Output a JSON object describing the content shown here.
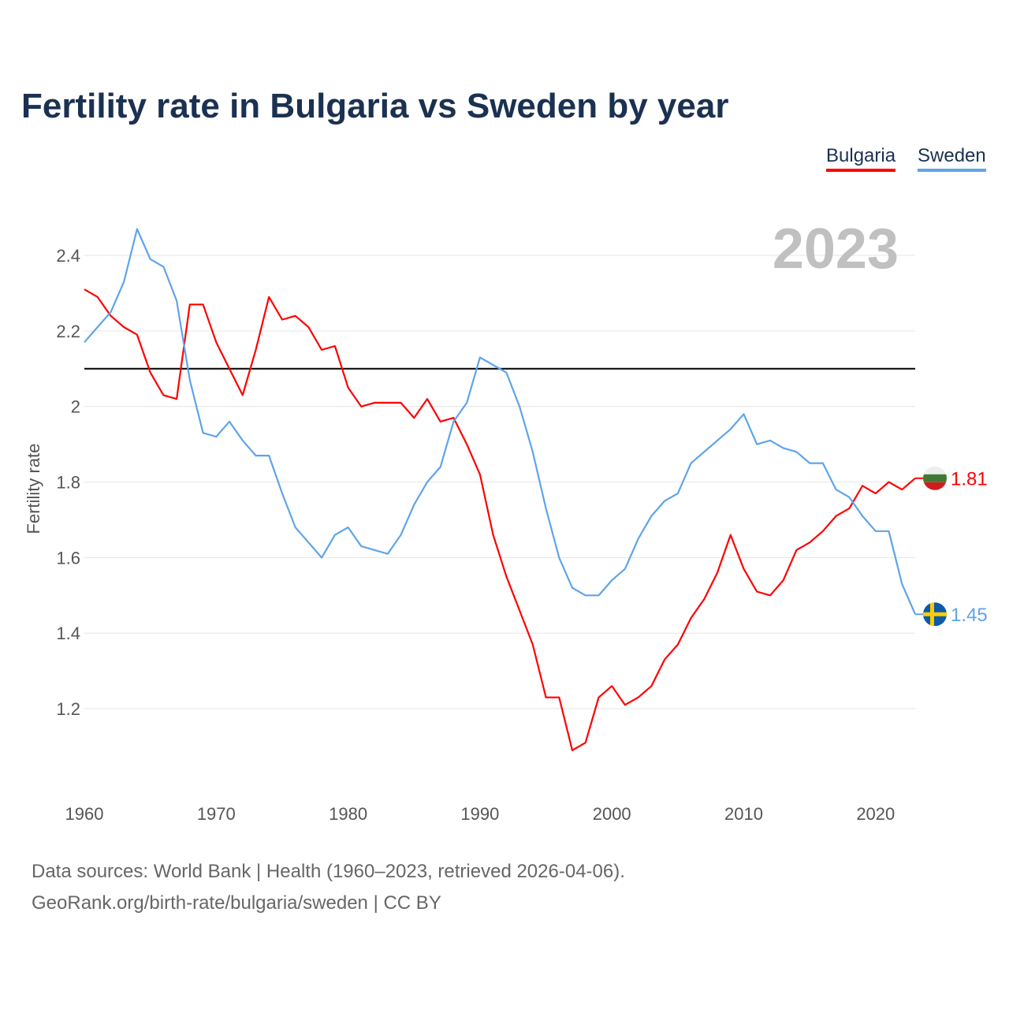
{
  "chart_data": {
    "type": "line",
    "title": "Fertility rate in Bulgaria vs Sweden by year",
    "xlabel": "",
    "ylabel": "Fertility rate",
    "xlim": [
      1960,
      2023
    ],
    "ylim": [
      1.0,
      2.55
    ],
    "xticks": [
      1960,
      1970,
      1980,
      1990,
      2000,
      2010,
      2020
    ],
    "yticks": [
      1.2,
      1.4,
      1.6,
      1.8,
      2.0,
      2.2,
      2.4
    ],
    "ytick_labels": [
      "1.2",
      "1.4",
      "1.6",
      "1.8",
      "2",
      "2.2",
      "2.4"
    ],
    "reference_line": 2.1,
    "year_label": "2023",
    "grid": true,
    "legend_position": "top-right",
    "x": [
      1960,
      1961,
      1962,
      1963,
      1964,
      1965,
      1966,
      1967,
      1968,
      1969,
      1970,
      1971,
      1972,
      1973,
      1974,
      1975,
      1976,
      1977,
      1978,
      1979,
      1980,
      1981,
      1982,
      1983,
      1984,
      1985,
      1986,
      1987,
      1988,
      1989,
      1990,
      1991,
      1992,
      1993,
      1994,
      1995,
      1996,
      1997,
      1998,
      1999,
      2000,
      2001,
      2002,
      2003,
      2004,
      2005,
      2006,
      2007,
      2008,
      2009,
      2010,
      2011,
      2012,
      2013,
      2014,
      2015,
      2016,
      2017,
      2018,
      2019,
      2020,
      2021,
      2022,
      2023
    ],
    "series": [
      {
        "name": "Bulgaria",
        "color": "#ff0000",
        "end_label": "1.81",
        "values": [
          2.31,
          2.29,
          2.24,
          2.21,
          2.19,
          2.09,
          2.03,
          2.02,
          2.27,
          2.27,
          2.17,
          2.1,
          2.03,
          2.15,
          2.29,
          2.23,
          2.24,
          2.21,
          2.15,
          2.16,
          2.05,
          2.0,
          2.01,
          2.01,
          2.01,
          1.97,
          2.02,
          1.96,
          1.97,
          1.9,
          1.82,
          1.66,
          1.55,
          1.46,
          1.37,
          1.23,
          1.23,
          1.09,
          1.11,
          1.23,
          1.26,
          1.21,
          1.23,
          1.26,
          1.33,
          1.37,
          1.44,
          1.49,
          1.56,
          1.66,
          1.57,
          1.51,
          1.5,
          1.54,
          1.62,
          1.64,
          1.67,
          1.71,
          1.73,
          1.79,
          1.77,
          1.8,
          1.78,
          1.81
        ]
      },
      {
        "name": "Sweden",
        "color": "#5ea4ea",
        "end_label": "1.45",
        "values": [
          2.17,
          2.21,
          2.25,
          2.33,
          2.47,
          2.39,
          2.37,
          2.28,
          2.07,
          1.93,
          1.92,
          1.96,
          1.91,
          1.87,
          1.87,
          1.77,
          1.68,
          1.64,
          1.6,
          1.66,
          1.68,
          1.63,
          1.62,
          1.61,
          1.66,
          1.74,
          1.8,
          1.84,
          1.96,
          2.01,
          2.13,
          2.11,
          2.09,
          2.0,
          1.88,
          1.73,
          1.6,
          1.52,
          1.5,
          1.5,
          1.54,
          1.57,
          1.65,
          1.71,
          1.75,
          1.77,
          1.85,
          1.88,
          1.91,
          1.94,
          1.98,
          1.9,
          1.91,
          1.89,
          1.88,
          1.85,
          1.85,
          1.78,
          1.76,
          1.71,
          1.67,
          1.67,
          1.53,
          1.45
        ]
      }
    ]
  },
  "footer": {
    "line1": "Data sources: World Bank | Health (1960–2023, retrieved 2026-04-06).",
    "line2": "GeoRank.org/birth-rate/bulgaria/sweden | CC BY"
  }
}
